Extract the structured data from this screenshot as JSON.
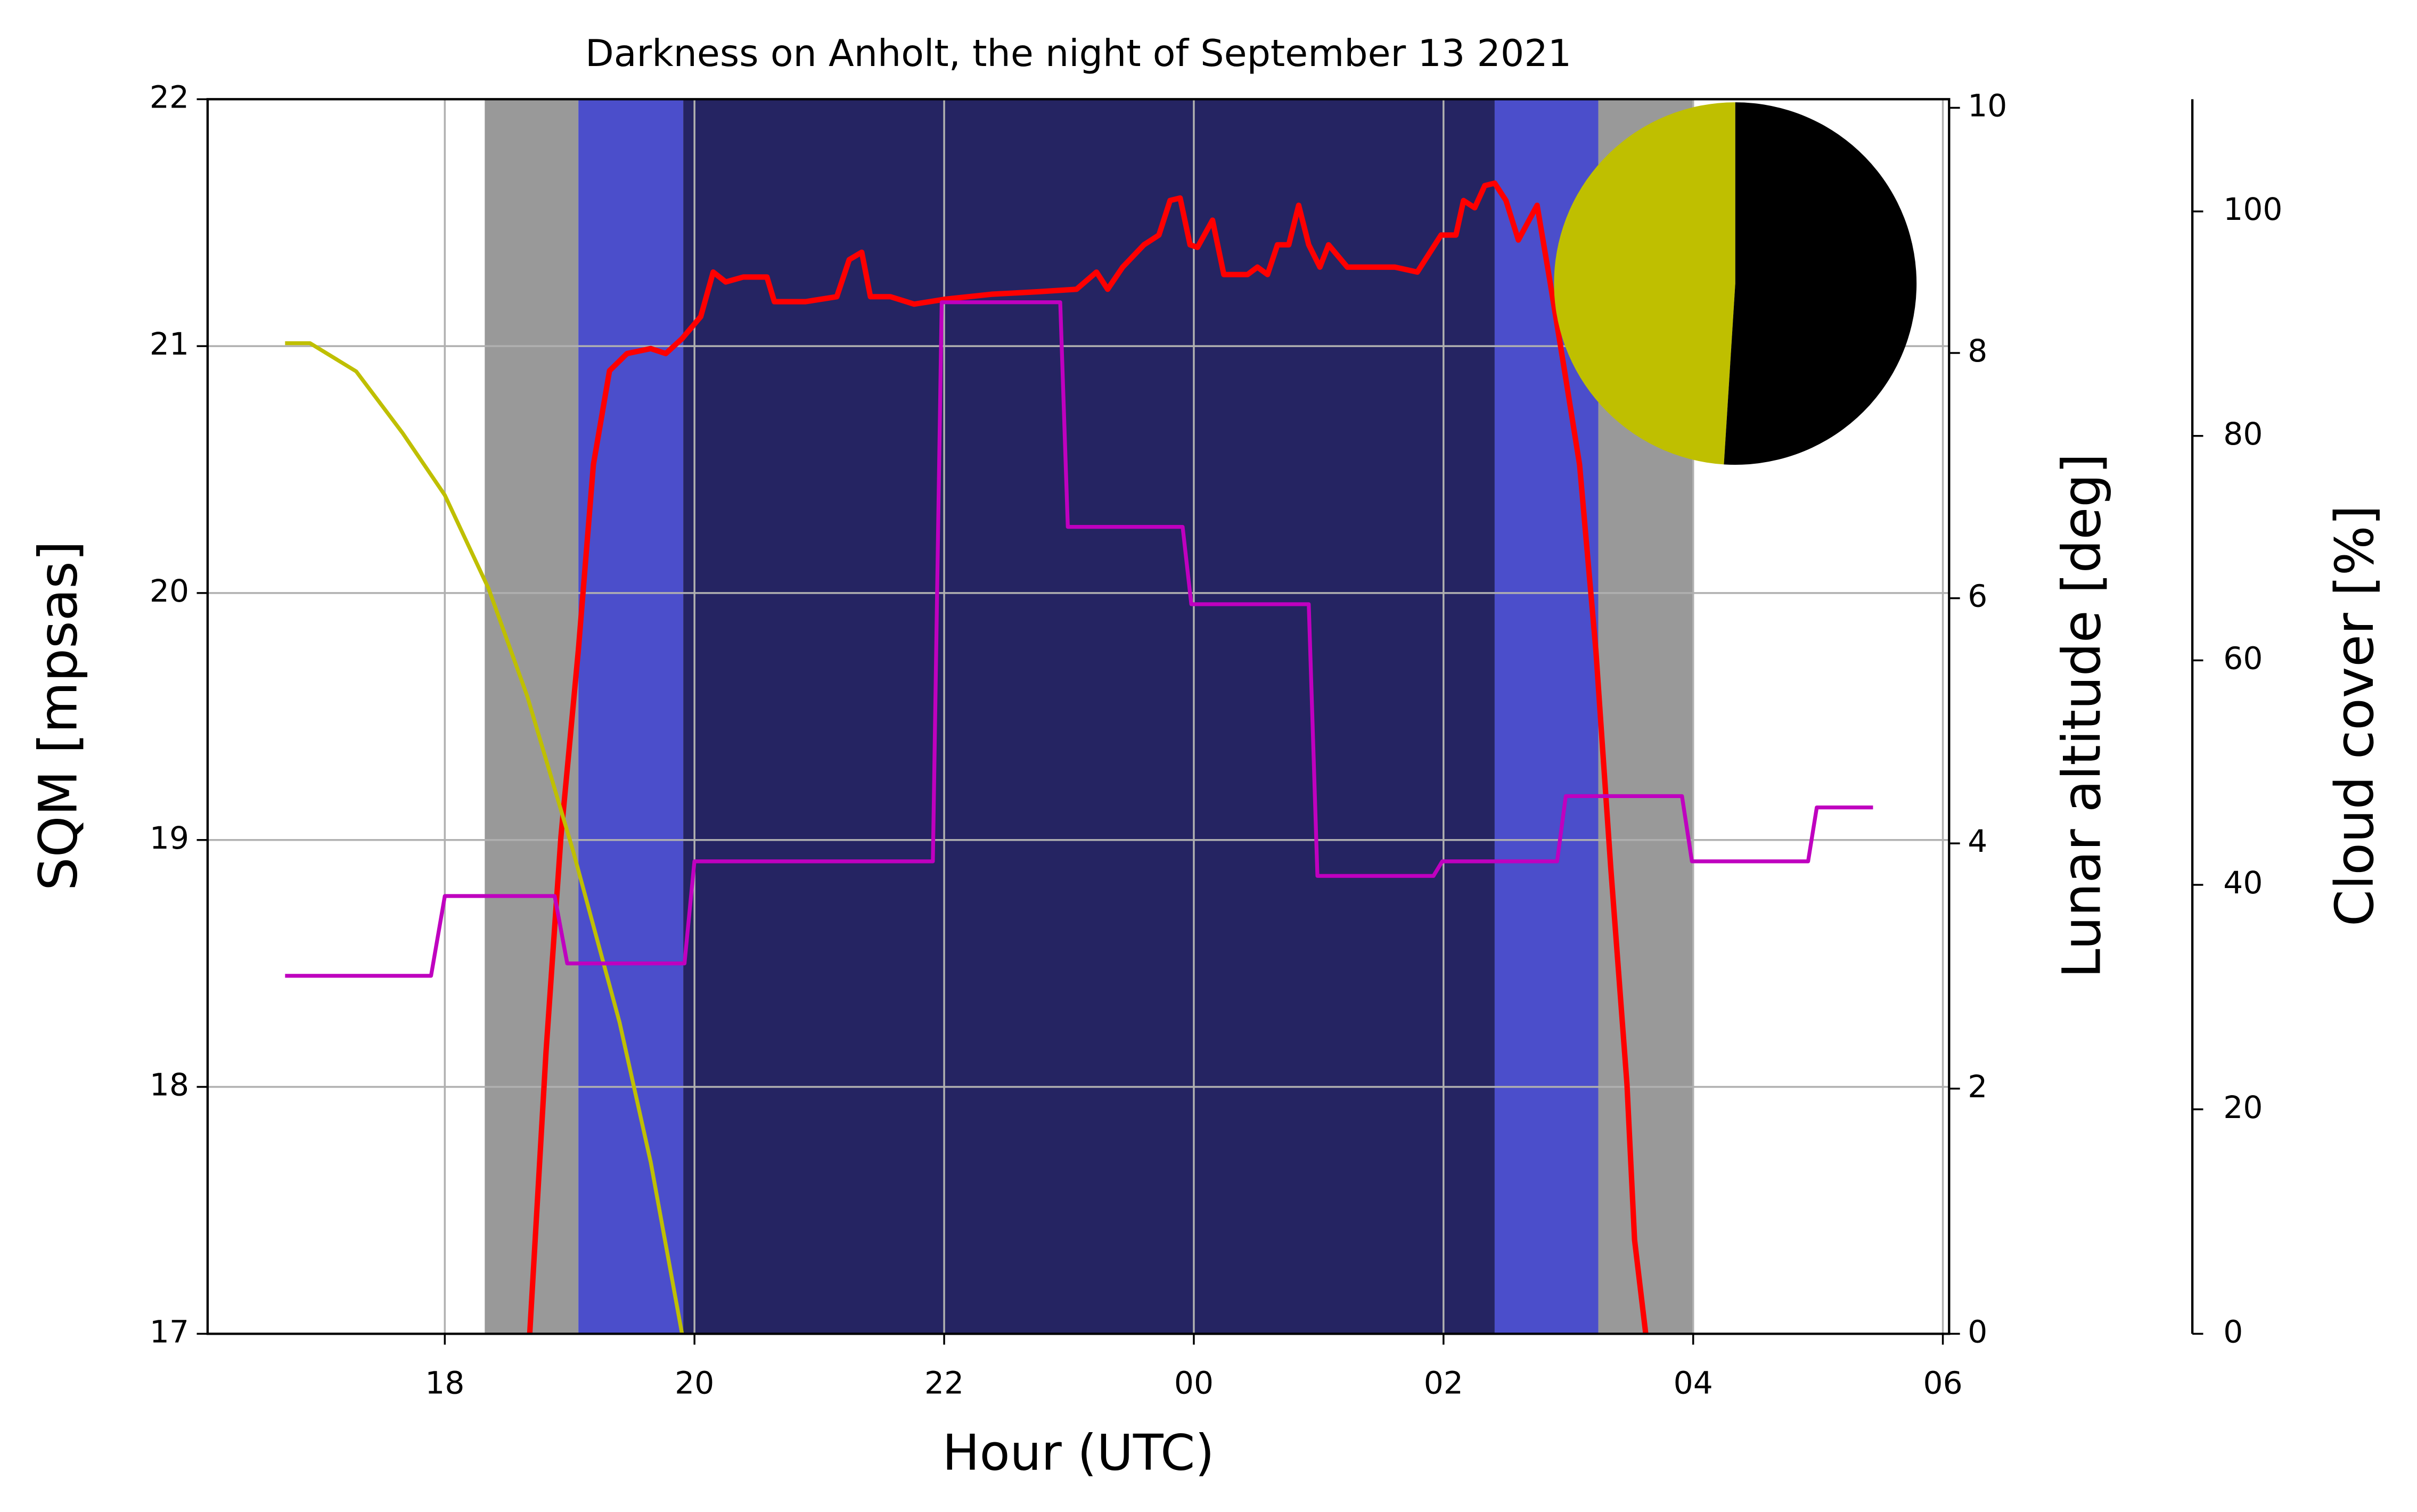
{
  "chart_data": {
    "type": "line",
    "title": "Darkness on Anholt, the night of September 13 2021",
    "xlabel": "Hour (UTC)",
    "ylabel": "SQM [mpsas]",
    "y2label": "Lunar altitude [deg]",
    "y3label": "Cloud cover [%]",
    "xlim": [
      16.1,
      30.05
    ],
    "xticks": [
      18,
      20,
      22,
      {
        "value": 24,
        "label": "00"
      },
      {
        "value": 26,
        "label": "02"
      },
      {
        "value": 28,
        "label": "04"
      },
      {
        "value": 30,
        "label": "06"
      }
    ],
    "ylim": [
      17,
      22
    ],
    "yticks": [
      17,
      18,
      19,
      20,
      21,
      22
    ],
    "y2lim": [
      0,
      10.07
    ],
    "y2ticks": [
      0,
      2,
      4,
      6,
      8,
      10
    ],
    "y3lim": [
      0,
      110
    ],
    "y3ticks": [
      0,
      20,
      40,
      60,
      80,
      100
    ],
    "grid": true,
    "ylabel_color": "#ff0000",
    "y2label_color": "#bfbf00",
    "y3label_color": "#bf00bf",
    "bands": [
      {
        "start": 18.32,
        "end": 19.07,
        "color": "#999999"
      },
      {
        "start": 19.07,
        "end": 19.91,
        "color": "#4b4ecb"
      },
      {
        "start": 19.91,
        "end": 26.41,
        "color": "#252462"
      },
      {
        "start": 26.41,
        "end": 27.24,
        "color": "#4b4ecb"
      },
      {
        "start": 27.24,
        "end": 28.0,
        "color": "#999999"
      }
    ],
    "series": [
      {
        "color": "#ff0000",
        "axis": "y",
        "x": [
          18.68,
          18.81,
          18.93,
          19.07,
          19.19,
          19.32,
          19.46,
          19.65,
          19.77,
          19.9,
          20.05,
          20.15,
          20.25,
          20.39,
          20.58,
          20.64,
          20.89,
          21.14,
          21.24,
          21.34,
          21.41,
          21.57,
          21.76,
          22.01,
          22.38,
          22.75,
          23.06,
          23.22,
          23.31,
          23.43,
          23.6,
          23.72,
          23.81,
          23.89,
          23.97,
          24.03,
          24.15,
          24.24,
          24.43,
          24.51,
          24.59,
          24.67,
          24.76,
          24.84,
          24.92,
          25.01,
          25.08,
          25.23,
          25.61,
          25.79,
          25.98,
          26.1,
          26.16,
          26.25,
          26.33,
          26.41,
          26.5,
          26.6,
          26.75,
          26.85,
          26.97,
          27.09,
          27.22,
          27.34,
          27.47,
          27.53,
          27.62
        ],
        "values": [
          17.0,
          18.14,
          19.01,
          19.77,
          20.52,
          20.9,
          20.97,
          20.99,
          20.97,
          21.03,
          21.12,
          21.3,
          21.26,
          21.28,
          21.28,
          21.18,
          21.18,
          21.2,
          21.35,
          21.38,
          21.2,
          21.2,
          21.17,
          21.19,
          21.21,
          21.22,
          21.23,
          21.3,
          21.23,
          21.32,
          21.41,
          21.45,
          21.59,
          21.6,
          21.41,
          21.4,
          21.51,
          21.29,
          21.29,
          21.32,
          21.29,
          21.41,
          21.41,
          21.57,
          21.41,
          21.32,
          21.41,
          21.32,
          21.32,
          21.3,
          21.45,
          21.45,
          21.59,
          21.56,
          21.65,
          21.66,
          21.59,
          21.43,
          21.57,
          21.27,
          20.9,
          20.52,
          19.77,
          18.89,
          18.01,
          17.38,
          17.0
        ]
      },
      {
        "color": "#bfbf00",
        "axis": "y2",
        "x": [
          16.72,
          16.92,
          17.29,
          17.66,
          18.0,
          18.35,
          18.66,
          19.03,
          19.4,
          19.65,
          19.9
        ],
        "values": [
          8.08,
          8.08,
          7.85,
          7.35,
          6.84,
          6.08,
          5.2,
          3.93,
          2.54,
          1.4,
          0
        ]
      },
      {
        "color": "#bf00bf",
        "axis": "y3",
        "x": [
          16.72,
          17.89,
          18.0,
          18.88,
          18.98,
          19.92,
          20.0,
          21.91,
          21.98,
          22.93,
          22.99,
          23.91,
          23.98,
          24.92,
          24.99,
          25.92,
          25.99,
          26.91,
          26.98,
          27.91,
          27.99,
          28.92,
          28.99,
          29.44
        ],
        "values": [
          31.9,
          31.9,
          39.0,
          39.0,
          33.0,
          33.0,
          42.1,
          42.1,
          91.9,
          91.9,
          71.9,
          71.9,
          65.0,
          65.0,
          40.8,
          40.8,
          42.1,
          42.1,
          47.9,
          47.9,
          42.1,
          42.1,
          46.9,
          46.9
        ]
      }
    ],
    "moon": {
      "values": [
        49,
        51
      ],
      "colors": [
        "#bfbf00",
        "#000000"
      ]
    }
  }
}
